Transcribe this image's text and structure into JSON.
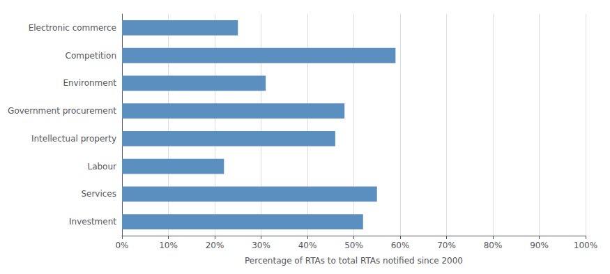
{
  "chart_data": {
    "type": "bar",
    "orientation": "horizontal",
    "categories": [
      "Investment",
      "Services",
      "Labour",
      "Intellectual property",
      "Government procurement",
      "Environment",
      "Competition",
      "Electronic commerce"
    ],
    "values": [
      52,
      55,
      22,
      46,
      48,
      31,
      59,
      25
    ],
    "color": "#5b8fbf",
    "xlabel": "Percentage of RTAs to total RTAs notified since 2000",
    "xlim": [
      0,
      100
    ],
    "xticks": [
      {
        "value": 0,
        "label": "0%"
      },
      {
        "value": 10,
        "label": "10%"
      },
      {
        "value": 20,
        "label": "20%"
      },
      {
        "value": 30,
        "label": "30%"
      },
      {
        "value": 40,
        "label": "40%"
      },
      {
        "value": 50,
        "label": "50%"
      },
      {
        "value": 60,
        "label": "60%"
      },
      {
        "value": 70,
        "label": "70%"
      },
      {
        "value": 80,
        "label": "80%"
      },
      {
        "value": 90,
        "label": "90%"
      },
      {
        "value": 100,
        "label": "100%"
      }
    ],
    "grid": true
  }
}
